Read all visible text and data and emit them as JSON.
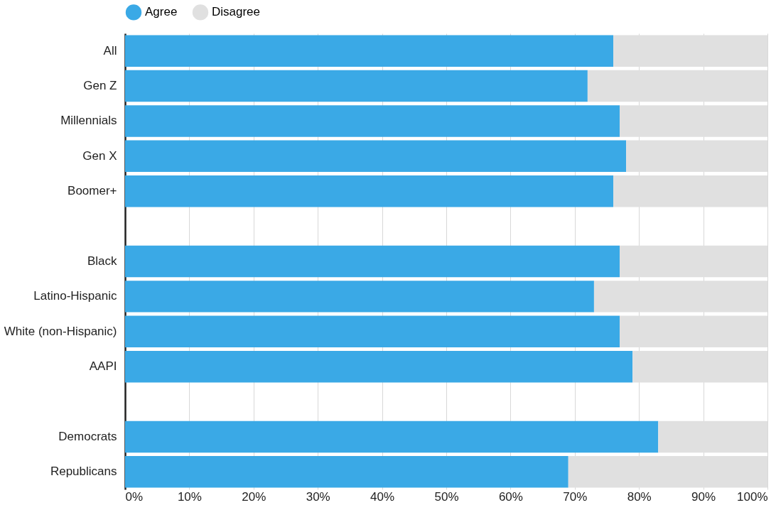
{
  "chart_data": {
    "type": "bar",
    "orientation": "horizontal",
    "stacked": true,
    "categories": [
      "All",
      "Gen Z",
      "Millennials",
      "Gen X",
      "Boomer+",
      null,
      "Black",
      "Latino-Hispanic",
      "White (non-Hispanic)",
      "AAPI",
      null,
      "Democrats",
      "Republicans"
    ],
    "series": [
      {
        "name": "Agree",
        "color": "#3aa9e6",
        "values": [
          76,
          72,
          77,
          78,
          76,
          null,
          77,
          73,
          77,
          79,
          null,
          83,
          69
        ]
      },
      {
        "name": "Disagree",
        "color": "#e0e0e0",
        "values": [
          24,
          28,
          23,
          22,
          24,
          null,
          23,
          27,
          23,
          21,
          null,
          17,
          31
        ]
      }
    ],
    "xlim": [
      0,
      100
    ],
    "xticks": [
      {
        "value": 0,
        "label": "0%"
      },
      {
        "value": 10,
        "label": "10%"
      },
      {
        "value": 20,
        "label": "20%"
      },
      {
        "value": 30,
        "label": "30%"
      },
      {
        "value": 40,
        "label": "40%"
      },
      {
        "value": 50,
        "label": "50%"
      },
      {
        "value": 60,
        "label": "60%"
      },
      {
        "value": 70,
        "label": "70%"
      },
      {
        "value": 80,
        "label": "80%"
      },
      {
        "value": 90,
        "label": "90%"
      },
      {
        "value": 100,
        "label": "100%"
      }
    ],
    "grid": "x",
    "legend": "top"
  }
}
